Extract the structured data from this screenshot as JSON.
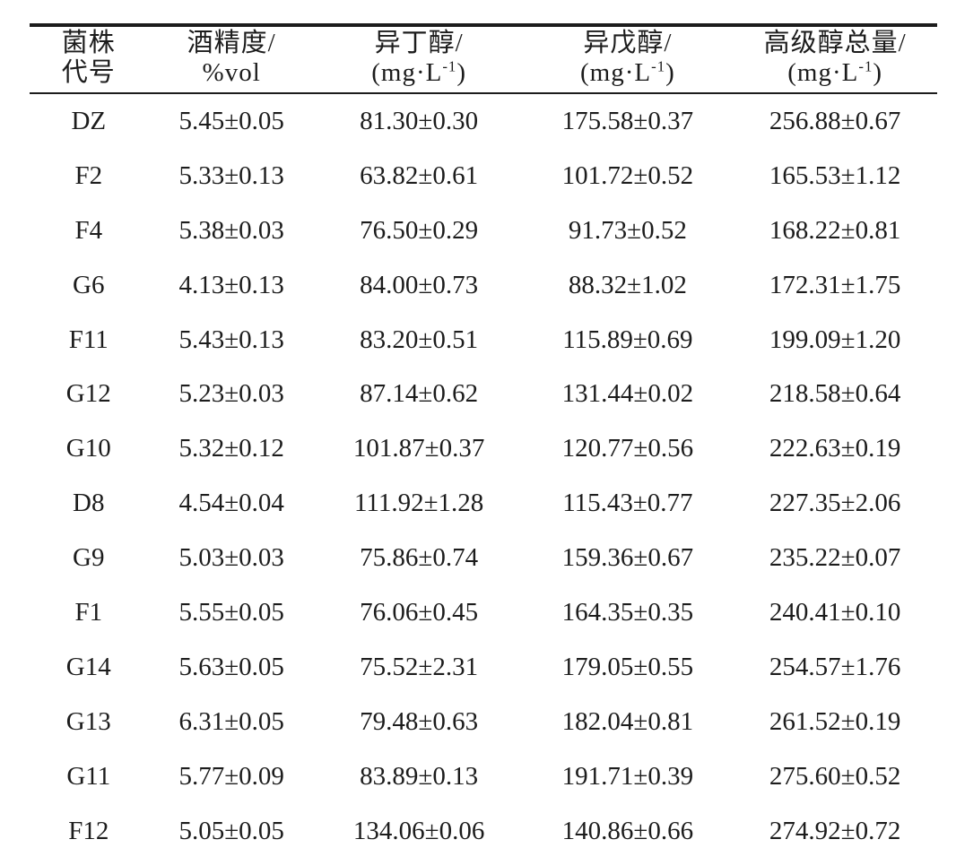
{
  "colors": {
    "background": "#ffffff",
    "text": "#1c1c1c",
    "rule": "#1c1c1c"
  },
  "table": {
    "header": {
      "strain_line1": "菌株",
      "strain_line2": "代号",
      "alcohol_line1": "酒精度/",
      "alcohol_line2": "%vol",
      "isobutanol_line1": "异丁醇/",
      "isoamyl_line1": "异戊醇/",
      "total_line1": "高级醇总量/",
      "unit_prefix": "(mg·L",
      "unit_exponent": "-1",
      "unit_suffix": ")"
    },
    "rows": [
      {
        "code": "DZ",
        "alcohol": "5.45±0.05",
        "isobutanol": "81.30±0.30",
        "isoamyl": "175.58±0.37",
        "total": "256.88±0.67"
      },
      {
        "code": "F2",
        "alcohol": "5.33±0.13",
        "isobutanol": "63.82±0.61",
        "isoamyl": "101.72±0.52",
        "total": "165.53±1.12"
      },
      {
        "code": "F4",
        "alcohol": "5.38±0.03",
        "isobutanol": "76.50±0.29",
        "isoamyl": "91.73±0.52",
        "total": "168.22±0.81"
      },
      {
        "code": "G6",
        "alcohol": "4.13±0.13",
        "isobutanol": "84.00±0.73",
        "isoamyl": "88.32±1.02",
        "total": "172.31±1.75"
      },
      {
        "code": "F11",
        "alcohol": "5.43±0.13",
        "isobutanol": "83.20±0.51",
        "isoamyl": "115.89±0.69",
        "total": "199.09±1.20"
      },
      {
        "code": "G12",
        "alcohol": "5.23±0.03",
        "isobutanol": "87.14±0.62",
        "isoamyl": "131.44±0.02",
        "total": "218.58±0.64"
      },
      {
        "code": "G10",
        "alcohol": "5.32±0.12",
        "isobutanol": "101.87±0.37",
        "isoamyl": "120.77±0.56",
        "total": "222.63±0.19"
      },
      {
        "code": "D8",
        "alcohol": "4.54±0.04",
        "isobutanol": "111.92±1.28",
        "isoamyl": "115.43±0.77",
        "total": "227.35±2.06"
      },
      {
        "code": "G9",
        "alcohol": "5.03±0.03",
        "isobutanol": "75.86±0.74",
        "isoamyl": "159.36±0.67",
        "total": "235.22±0.07"
      },
      {
        "code": "F1",
        "alcohol": "5.55±0.05",
        "isobutanol": "76.06±0.45",
        "isoamyl": "164.35±0.35",
        "total": "240.41±0.10"
      },
      {
        "code": "G14",
        "alcohol": "5.63±0.05",
        "isobutanol": "75.52±2.31",
        "isoamyl": "179.05±0.55",
        "total": "254.57±1.76"
      },
      {
        "code": "G13",
        "alcohol": "6.31±0.05",
        "isobutanol": "79.48±0.63",
        "isoamyl": "182.04±0.81",
        "total": "261.52±0.19"
      },
      {
        "code": "G11",
        "alcohol": "5.77±0.09",
        "isobutanol": "83.89±0.13",
        "isoamyl": "191.71±0.39",
        "total": "275.60±0.52"
      },
      {
        "code": "F12",
        "alcohol": "5.05±0.05",
        "isobutanol": "134.06±0.06",
        "isoamyl": "140.86±0.66",
        "total": "274.92±0.72"
      }
    ]
  }
}
